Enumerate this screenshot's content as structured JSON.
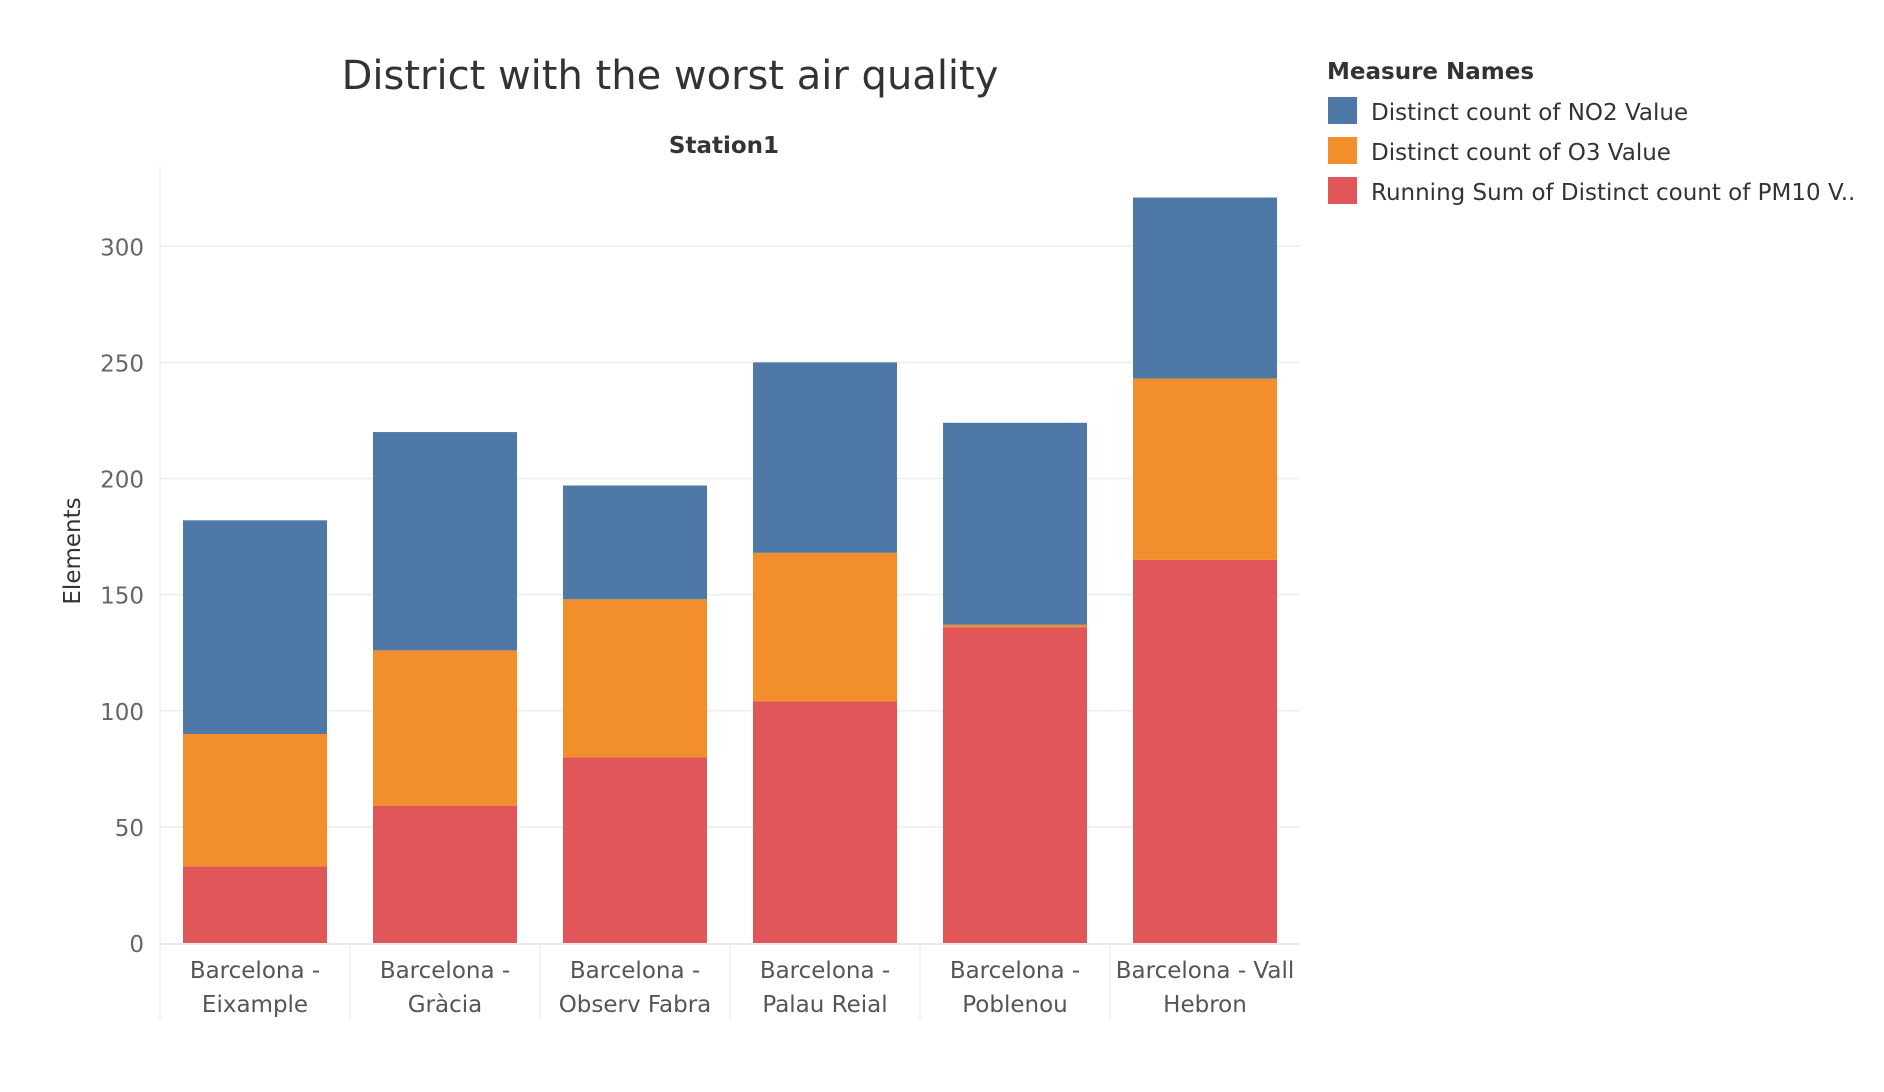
{
  "chart_data": {
    "type": "bar",
    "stacked": true,
    "title": "District with the worst air quality",
    "panel_title": "Station1",
    "ylabel": "Elements",
    "ylim": [
      0,
      335
    ],
    "yticks": [
      0,
      50,
      100,
      150,
      200,
      250,
      300
    ],
    "grid": true,
    "legend_title": "Measure Names",
    "legend_position": "top-right",
    "categories": [
      [
        "Barcelona -",
        "Eixample"
      ],
      [
        "Barcelona -",
        "Gràcia"
      ],
      [
        "Barcelona -",
        "Observ Fabra"
      ],
      [
        "Barcelona -",
        "Palau Reial"
      ],
      [
        "Barcelona -",
        "Poblenou"
      ],
      [
        "Barcelona - Vall",
        "Hebron"
      ]
    ],
    "series": [
      {
        "name": "Running Sum of Distinct count of PM10 V..",
        "color": "#e15759",
        "values": [
          33,
          59,
          80,
          104,
          136,
          165
        ]
      },
      {
        "name": "Distinct count of O3 Value",
        "color": "#f28e2b",
        "values": [
          57,
          67,
          68,
          64,
          1,
          78
        ]
      },
      {
        "name": "Distinct count of NO2 Value",
        "color": "#4e79a7",
        "values": [
          92,
          94,
          49,
          82,
          87,
          78
        ]
      }
    ],
    "legend_order": [
      2,
      1,
      0
    ]
  }
}
